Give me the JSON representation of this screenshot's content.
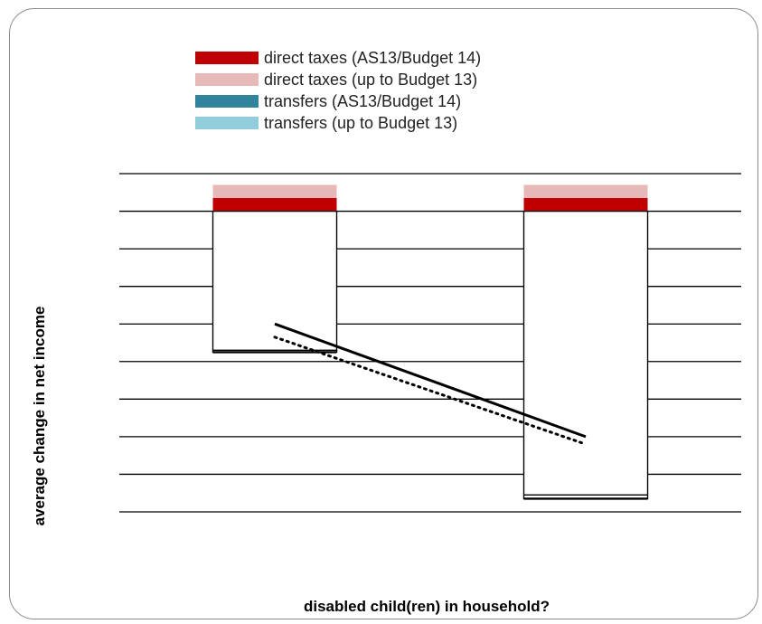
{
  "chart_data": {
    "type": "bar",
    "title": "",
    "xlabel": "disabled child(ren) in household?",
    "ylabel": "average change in net income",
    "categories": [
      "",
      ""
    ],
    "ylim": [
      -8,
      1
    ],
    "grid": true,
    "legend_position": "top",
    "series": [
      {
        "name": "direct taxes (AS13/Budget 14)",
        "color": "#c00000",
        "values": [
          0.35,
          0.35
        ],
        "stack": "positive"
      },
      {
        "name": "direct taxes (up to Budget 13)",
        "color": "#e6b8b7",
        "values": [
          0.35,
          0.35
        ],
        "stack": "positive"
      },
      {
        "name": "transfers (AS13/Budget 14)",
        "color": "#31849b",
        "values": [
          -3.7,
          -7.55
        ],
        "stack": "negative"
      },
      {
        "name": "transfers (up to Budget 13)",
        "color": "#92cddc",
        "values": [
          -0.05,
          -0.1
        ],
        "stack": "negative"
      }
    ],
    "lines": [
      {
        "style": "solid",
        "points": [
          [
            0.5,
            -3.0
          ],
          [
            1.5,
            -6.0
          ]
        ]
      },
      {
        "style": "dotted",
        "points": [
          [
            0.5,
            -3.35
          ],
          [
            1.5,
            -6.2
          ]
        ]
      }
    ]
  }
}
